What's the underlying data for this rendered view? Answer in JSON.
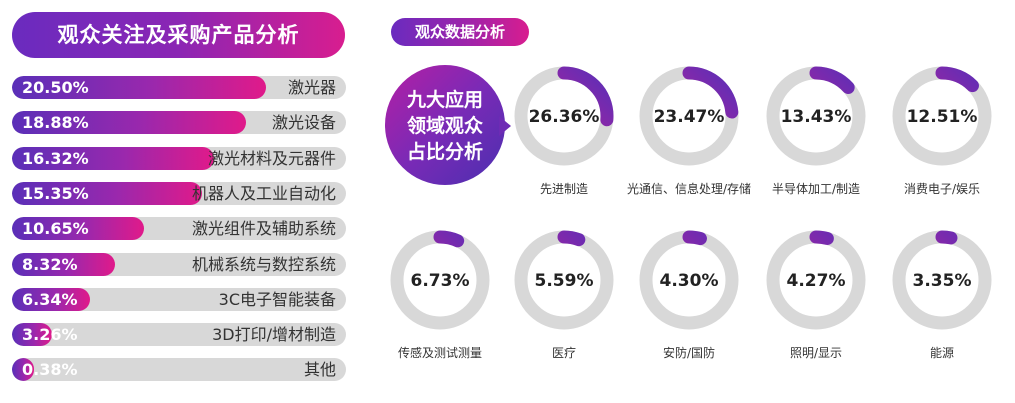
{
  "left_title": "观众关注及采购产品分析",
  "right_title": "观众数据分析",
  "badge_lines": [
    "九大应用",
    "领域观众",
    "占比分析"
  ],
  "colors": {
    "accent_purple": "#6a2bbf",
    "accent_magenta": "#d81d8f",
    "track_gray": "#d8d8d8"
  },
  "chart_data": [
    {
      "type": "bar",
      "orientation": "horizontal",
      "title": "观众关注及采购产品分析",
      "categories": [
        "激光器",
        "激光设备",
        "激光材料及元器件",
        "机器人及工业自动化",
        "激光组件及辅助系统",
        "机械系统与数控系统",
        "3C电子智能装备",
        "3D打印/增材制造",
        "其他"
      ],
      "values": [
        20.5,
        18.88,
        16.32,
        15.35,
        10.65,
        8.32,
        6.34,
        3.26,
        0.38
      ],
      "labels": [
        "20.50%",
        "18.88%",
        "16.32%",
        "15.35%",
        "10.65%",
        "8.32%",
        "6.34%",
        "3.26%",
        "0.38%"
      ],
      "unit": "%"
    },
    {
      "type": "donut",
      "title": "九大应用领域观众占比分析",
      "categories": [
        "先进制造",
        "光通信、信息处理/存储",
        "半导体加工/制造",
        "消费电子/娱乐",
        "传感及测试测量",
        "医疗",
        "安防/国防",
        "照明/显示",
        "能源"
      ],
      "values": [
        26.36,
        23.47,
        13.43,
        12.51,
        6.73,
        5.59,
        4.3,
        4.27,
        3.35
      ],
      "labels": [
        "26.36%",
        "23.47%",
        "13.43%",
        "12.51%",
        "6.73%",
        "5.59%",
        "4.30%",
        "4.27%",
        "3.35%"
      ],
      "unit": "%"
    }
  ]
}
